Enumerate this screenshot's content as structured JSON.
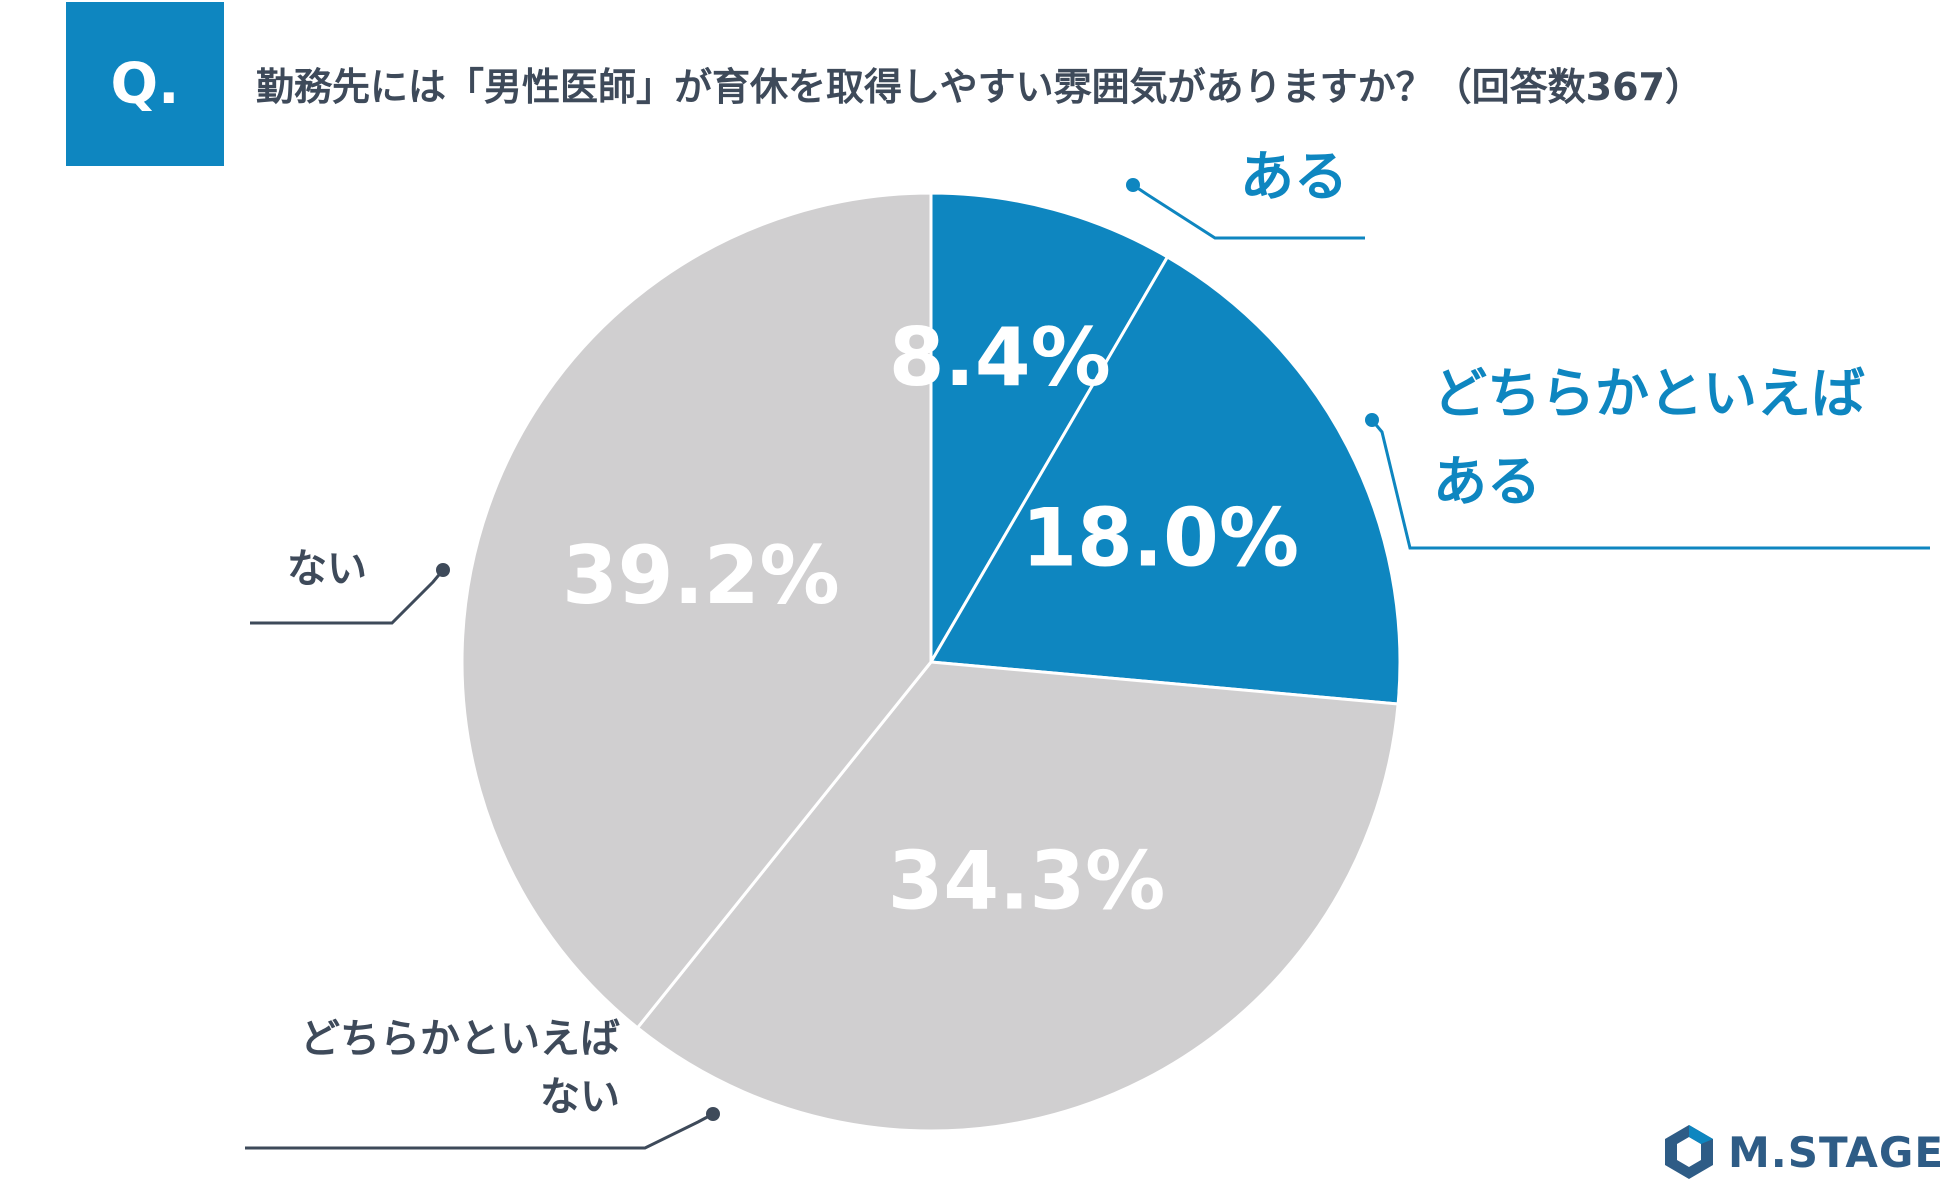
{
  "question": {
    "badge": "Q.",
    "text": "勤務先には「男性医師」が育休を取得しやすい雰囲気がありますか？（回答数367）"
  },
  "logo": {
    "icon": "hexagon-logo-icon",
    "text": "M.STAGE"
  },
  "colors": {
    "blue": "#0e86c0",
    "gray": "#d0cfd0",
    "dark": "#3e4a5a"
  },
  "chart_data": {
    "type": "pie",
    "start_angle_deg": 0,
    "direction": "clockwise",
    "slices": [
      {
        "label_lines": [
          "ある"
        ],
        "value": 8.4,
        "display": "8.4%",
        "color": "#0e86c0",
        "label_color": "#0e86c0"
      },
      {
        "label_lines": [
          "どちらかといえば",
          "ある"
        ],
        "value": 18.0,
        "display": "18.0%",
        "color": "#0e86c0",
        "label_color": "#0e86c0"
      },
      {
        "label_lines": [
          "どちらかといえば",
          "ない"
        ],
        "value": 34.3,
        "display": "34.3%",
        "color": "#d0cfd0",
        "label_color": "#3e4a5a"
      },
      {
        "label_lines": [
          "ない"
        ],
        "value": 39.2,
        "display": "39.2%",
        "color": "#d0cfd0",
        "label_color": "#3e4a5a"
      }
    ]
  }
}
